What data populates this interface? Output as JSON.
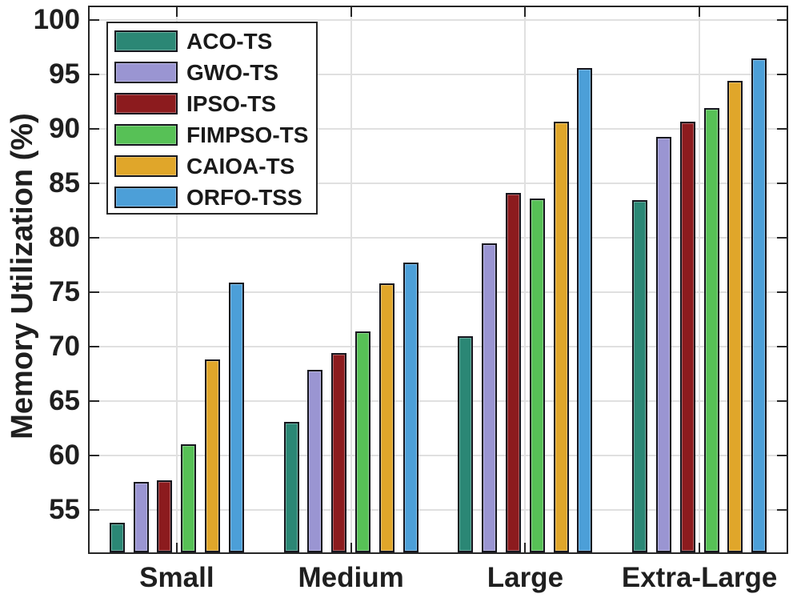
{
  "chart_data": {
    "type": "bar",
    "title": "",
    "xlabel": "",
    "ylabel": "Memory Utilization (%)",
    "categories": [
      "Small",
      "Medium",
      "Large",
      "Extra-Large"
    ],
    "series": [
      {
        "name": "ACO-TS",
        "color": "#2b8775",
        "values": [
          53.8,
          63.1,
          71.0,
          83.5
        ]
      },
      {
        "name": "GWO-TS",
        "color": "#9a95d2",
        "values": [
          57.6,
          67.9,
          79.5,
          89.3
        ]
      },
      {
        "name": "IPSO-TS",
        "color": "#8c1b1e",
        "values": [
          57.7,
          69.4,
          84.1,
          90.7
        ]
      },
      {
        "name": "FIMPSO-TS",
        "color": "#57c156",
        "values": [
          61.0,
          71.4,
          83.6,
          91.9
        ]
      },
      {
        "name": "CAIOA-TS",
        "color": "#e0a62a",
        "values": [
          68.8,
          75.8,
          90.7,
          94.4
        ]
      },
      {
        "name": "ORFO-TSS",
        "color": "#4c9fd8",
        "values": [
          75.9,
          77.7,
          95.6,
          96.5
        ]
      }
    ],
    "ylim": [
      51.1,
      101.2
    ],
    "yticks": [
      55,
      60,
      65,
      70,
      75,
      80,
      85,
      90,
      95,
      100
    ],
    "grid": true,
    "legend_position": "top-left"
  },
  "styles": {
    "axis_color": "#262626",
    "grid_color": "#e0e0e0",
    "bar_edge_color": "#16161e",
    "text_color": "#1f1f1f",
    "background": "#ffffff"
  }
}
